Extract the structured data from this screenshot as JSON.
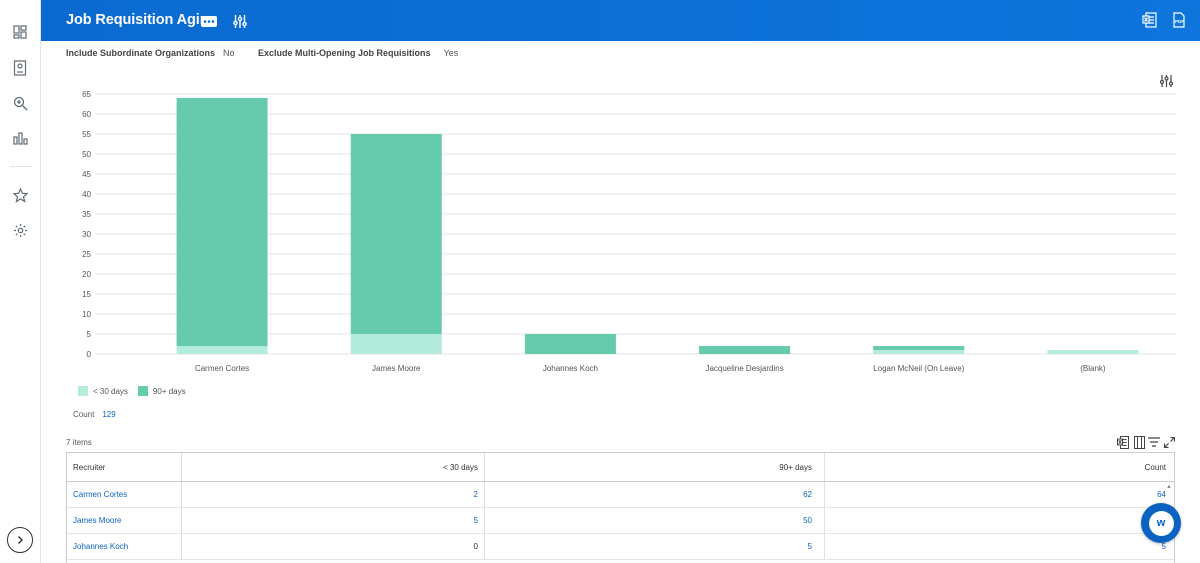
{
  "header": {
    "title": "Job Requisition Aging",
    "icons": [
      "more-actions-icon",
      "filter-settings-icon",
      "export-excel-icon",
      "export-pdf-icon"
    ]
  },
  "sidebar": {
    "icons": [
      "dashboard-icon",
      "reports-icon",
      "search-icon",
      "charts-icon",
      "favorites-star-icon",
      "settings-gear-icon",
      "expand-chevron-icon"
    ]
  },
  "filters": [
    {
      "label": "Include Subordinate Organizations",
      "value": "No"
    },
    {
      "label": "Exclude Multi-Opening Job Requisitions",
      "value": "Yes"
    }
  ],
  "chart_data": {
    "type": "bar",
    "stacked": true,
    "categories": [
      "Carmen Cortes",
      "James Moore",
      "Johannes Koch",
      "Jacqueline Desjardins",
      "Logan McNeil (On Leave)",
      "(Blank)"
    ],
    "series": [
      {
        "name": "< 30 days",
        "color": "#b3ecdd",
        "values": [
          2,
          5,
          0,
          0,
          1,
          1
        ]
      },
      {
        "name": "90+ days",
        "color": "#66cbad",
        "values": [
          62,
          50,
          5,
          2,
          1,
          0
        ]
      }
    ],
    "ylim": [
      0,
      65
    ],
    "yticks": [
      0,
      5,
      10,
      15,
      20,
      25,
      30,
      35,
      40,
      45,
      50,
      55,
      60,
      65
    ],
    "grid": true,
    "legend": "bottom-left"
  },
  "summary": {
    "count_label": "Count",
    "count_value": "129"
  },
  "table": {
    "items_label": "7 items",
    "columns": [
      "Recruiter",
      "< 30 days",
      "90+ days",
      "Count"
    ],
    "rows": [
      {
        "recruiter": "Carmen Cortes",
        "lt30": "2",
        "d90": "62",
        "count": "64"
      },
      {
        "recruiter": "James Moore",
        "lt30": "5",
        "d90": "50",
        "count": ""
      },
      {
        "recruiter": "Johannes Koch",
        "lt30": "0",
        "d90": "5",
        "count": "5"
      }
    ]
  },
  "colors": {
    "header": "#0a6ad1",
    "link": "#0b63c1",
    "bar_light": "#b3ecdd",
    "bar_dark": "#66cbad"
  }
}
